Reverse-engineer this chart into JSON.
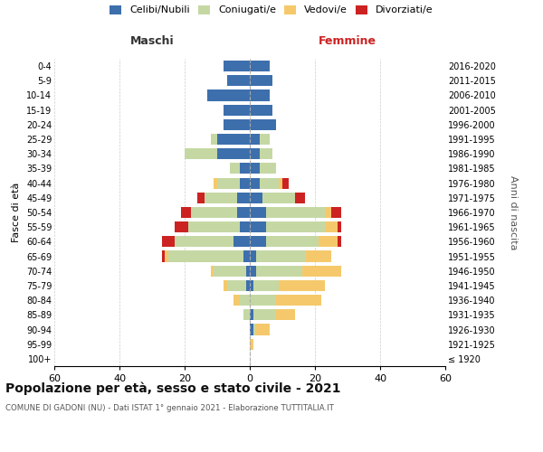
{
  "age_groups": [
    "100+",
    "95-99",
    "90-94",
    "85-89",
    "80-84",
    "75-79",
    "70-74",
    "65-69",
    "60-64",
    "55-59",
    "50-54",
    "45-49",
    "40-44",
    "35-39",
    "30-34",
    "25-29",
    "20-24",
    "15-19",
    "10-14",
    "5-9",
    "0-4"
  ],
  "birth_years": [
    "≤ 1920",
    "1921-1925",
    "1926-1930",
    "1931-1935",
    "1936-1940",
    "1941-1945",
    "1946-1950",
    "1951-1955",
    "1956-1960",
    "1961-1965",
    "1966-1970",
    "1971-1975",
    "1976-1980",
    "1981-1985",
    "1986-1990",
    "1991-1995",
    "1996-2000",
    "2001-2005",
    "2006-2010",
    "2011-2015",
    "2016-2020"
  ],
  "colors": {
    "celibi": "#3d6fad",
    "coniugati": "#c5d8a4",
    "vedovi": "#f5c96b",
    "divorziati": "#cc2222"
  },
  "maschi": {
    "celibi": [
      0,
      0,
      0,
      0,
      0,
      1,
      1,
      2,
      5,
      3,
      4,
      4,
      3,
      3,
      10,
      10,
      8,
      8,
      13,
      7,
      8
    ],
    "coniugati": [
      0,
      0,
      0,
      2,
      3,
      6,
      10,
      23,
      18,
      16,
      14,
      10,
      7,
      3,
      10,
      2,
      0,
      0,
      0,
      0,
      0
    ],
    "vedovi": [
      0,
      0,
      0,
      0,
      2,
      1,
      1,
      1,
      0,
      0,
      0,
      0,
      1,
      0,
      0,
      0,
      0,
      0,
      0,
      0,
      0
    ],
    "divorziati": [
      0,
      0,
      0,
      0,
      0,
      0,
      0,
      1,
      4,
      4,
      3,
      2,
      0,
      0,
      0,
      0,
      0,
      0,
      0,
      0,
      0
    ]
  },
  "femmine": {
    "celibi": [
      0,
      0,
      1,
      1,
      0,
      1,
      2,
      2,
      5,
      5,
      5,
      4,
      3,
      3,
      3,
      3,
      8,
      7,
      6,
      7,
      6
    ],
    "coniugati": [
      0,
      0,
      1,
      7,
      8,
      8,
      14,
      15,
      16,
      18,
      18,
      10,
      6,
      5,
      4,
      3,
      0,
      0,
      0,
      0,
      0
    ],
    "vedovi": [
      0,
      1,
      4,
      6,
      14,
      14,
      12,
      8,
      6,
      4,
      2,
      0,
      1,
      0,
      0,
      0,
      0,
      0,
      0,
      0,
      0
    ],
    "divorziati": [
      0,
      0,
      0,
      0,
      0,
      0,
      0,
      0,
      1,
      1,
      3,
      3,
      2,
      0,
      0,
      0,
      0,
      0,
      0,
      0,
      0
    ]
  },
  "xlim": 60,
  "title": "Popolazione per età, sesso e stato civile - 2021",
  "subtitle": "COMUNE DI GADONI (NU) - Dati ISTAT 1° gennaio 2021 - Elaborazione TUTTITALIA.IT",
  "ylabel_left": "Fasce di età",
  "ylabel_right": "Anni di nascita",
  "xlabel_left": "Maschi",
  "xlabel_right": "Femmine"
}
